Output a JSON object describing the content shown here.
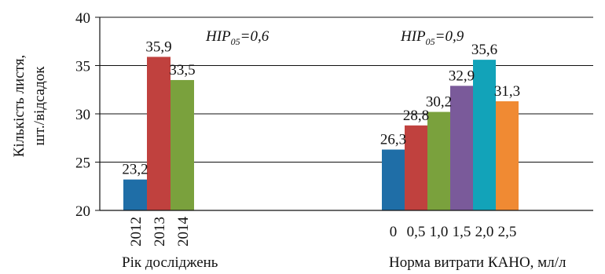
{
  "chart_data": {
    "type": "bar",
    "ylabel_line1": "Кількість листя,",
    "ylabel_line2": "шт./відсадок",
    "ylim": [
      20,
      40
    ],
    "yticks": [
      20,
      25,
      30,
      35,
      40
    ],
    "grid": true,
    "groups": [
      {
        "xlabel": "Рік досліджень",
        "annotation": {
          "prefix": "HIP",
          "sub": "05",
          "suffix": "=0,6"
        },
        "categories": [
          "2012",
          "2013",
          "2014"
        ],
        "values": [
          23.2,
          35.9,
          33.5
        ],
        "value_labels": [
          "23,2",
          "35,9",
          "33,5"
        ],
        "colors": [
          "#1F6EA7",
          "#C0413E",
          "#7AA13D"
        ]
      },
      {
        "xlabel": "Норма витрати КАНО, мл/л",
        "annotation": {
          "prefix": "HIP",
          "sub": "05",
          "suffix": "=0,9"
        },
        "categories": [
          "0",
          "0,5",
          "1,0",
          "1,5",
          "2,0",
          "2,5"
        ],
        "values": [
          26.3,
          28.8,
          30.2,
          32.9,
          35.6,
          31.3
        ],
        "value_labels": [
          "26,3",
          "28,8",
          "30,2",
          "32,9",
          "35,6",
          "31,3"
        ],
        "colors": [
          "#1F6EA7",
          "#C0413E",
          "#7AA13D",
          "#7A5A9A",
          "#12A3B9",
          "#F08A33"
        ]
      }
    ]
  }
}
